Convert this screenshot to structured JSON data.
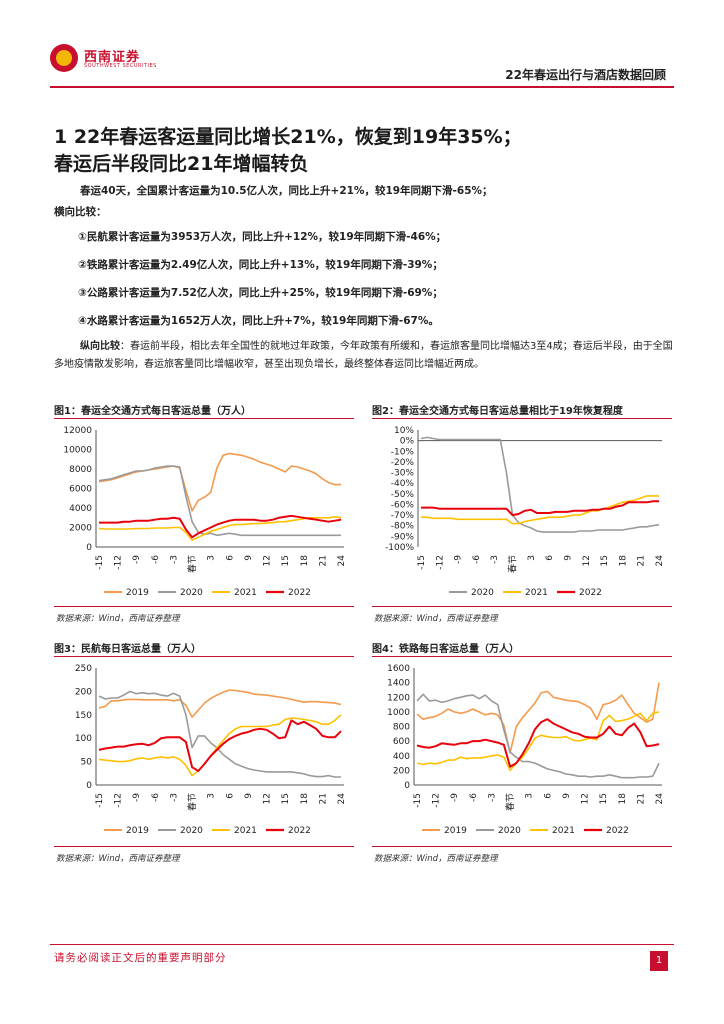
{
  "header": {
    "logo_cn": "西南证券",
    "logo_en": "SOUTHWEST SECURITIES",
    "title": "22年春运出行与酒店数据回顾"
  },
  "heading": {
    "line1": "1 22年春运客运量同比增长21%，恢复到19年35%；",
    "line2": "春运后半段同比21年增幅转负"
  },
  "summary": {
    "p1": "春运40天，全国累计客运量为10.5亿人次，同比上升+21%，较19年同期下滑-65%；",
    "p2": "横向比较：",
    "items": [
      "①民航累计客运量为3953万人次，同比上升+12%，较19年同期下滑-46%；",
      "②铁路累计客运量为2.49亿人次，同比上升+13%，较19年同期下滑-39%；",
      "③公路累计客运量为7.52亿人次，同比上升+25%，较19年同期下滑-69%；",
      "④水路累计客运量为1652万人次，同比上升+7%，较19年同期下滑-67%。"
    ],
    "vertical_label": "纵向比较",
    "vertical_text": "：春运前半段，相比去年全国性的就地过年政策，今年政策有所缓和，春运旅客量同比增幅达3至4成；春运后半段，由于全国多地疫情散发影响，春运旅客量同比增幅收窄，甚至出现负增长，最终整体春运同比增幅近两成。"
  },
  "figures": [
    {
      "title": "图1：春运全交通方式每日客运总量（万人）",
      "source": "数据来源：Wind，西南证券整理"
    },
    {
      "title": "图2：春运全交通方式每日客运总量相比于19年恢复程度",
      "source": "数据来源：Wind，西南证券整理"
    },
    {
      "title": "图3：民航每日客运总量（万人）",
      "source": "数据来源：Wind，西南证券整理"
    },
    {
      "title": "图4：铁路每日客运总量（万人）",
      "source": "数据来源：Wind，西南证券整理"
    }
  ],
  "footer": {
    "disclaimer": "请务必阅读正文后的重要声明部分",
    "page": "1"
  },
  "colors": {
    "s2019": "#f39a4c",
    "s2020": "#9a9a9a",
    "s2021": "#ffc000",
    "s2022": "#e8000b",
    "accent": "#c8102e"
  },
  "chart_data": [
    {
      "type": "line",
      "x_ticks": [
        "-15",
        "-12",
        "-9",
        "-6",
        "-3",
        "春节",
        "3",
        "6",
        "9",
        "12",
        "15",
        "18",
        "21",
        "24"
      ],
      "x": [
        -15,
        -14,
        -13,
        -12,
        -11,
        -10,
        -9,
        -8,
        -7,
        -6,
        -5,
        -4,
        -3,
        -2,
        -1,
        0,
        1,
        2,
        3,
        4,
        5,
        6,
        7,
        8,
        9,
        10,
        11,
        12,
        13,
        14,
        15,
        16,
        17,
        18,
        19,
        20,
        21,
        22,
        23,
        24
      ],
      "ylim": [
        0,
        12000
      ],
      "yticks": [
        "0",
        "2000",
        "4000",
        "6000",
        "8000",
        "10000",
        "12000"
      ],
      "legend": [
        "2019",
        "2020",
        "2021",
        "2022"
      ],
      "series": [
        {
          "name": "2019",
          "values": [
            6700,
            6800,
            6900,
            7100,
            7300,
            7500,
            7700,
            7800,
            7900,
            8000,
            8100,
            8200,
            8300,
            8100,
            5800,
            3700,
            4800,
            5100,
            5600,
            8100,
            9400,
            9600,
            9500,
            9400,
            9200,
            9000,
            8700,
            8500,
            8300,
            8000,
            7700,
            8300,
            8200,
            8000,
            7800,
            7500,
            7000,
            6600,
            6400,
            6400
          ]
        },
        {
          "name": "2020",
          "values": [
            6800,
            6900,
            7000,
            7200,
            7400,
            7600,
            7800,
            7800,
            7900,
            8100,
            8200,
            8300,
            8300,
            8200,
            5200,
            2600,
            1500,
            1300,
            1400,
            1200,
            1300,
            1400,
            1300,
            1200,
            1200,
            1200,
            1200,
            1200,
            1200,
            1200,
            1200,
            1200,
            1200,
            1200,
            1200,
            1200,
            1200,
            1200,
            1200,
            1200
          ]
        },
        {
          "name": "2021",
          "values": [
            1900,
            1850,
            1850,
            1850,
            1850,
            1850,
            1900,
            1900,
            1900,
            1950,
            1950,
            1950,
            2000,
            2000,
            1500,
            700,
            1000,
            1300,
            1600,
            1800,
            2000,
            2200,
            2300,
            2300,
            2350,
            2400,
            2400,
            2450,
            2500,
            2600,
            2600,
            2700,
            2800,
            2900,
            3000,
            3000,
            3000,
            3000,
            3100,
            3000
          ]
        },
        {
          "name": "2022",
          "values": [
            2500,
            2500,
            2500,
            2500,
            2600,
            2600,
            2700,
            2700,
            2700,
            2800,
            2900,
            2900,
            3000,
            2900,
            1800,
            1000,
            1400,
            1700,
            2000,
            2300,
            2500,
            2700,
            2800,
            2800,
            2800,
            2800,
            2700,
            2700,
            2800,
            3000,
            3100,
            3200,
            3100,
            3000,
            2900,
            2800,
            2700,
            2600,
            2700,
            2800
          ]
        }
      ]
    },
    {
      "type": "line",
      "x_ticks": [
        "-15",
        "-12",
        "-9",
        "-6",
        "-3",
        "春节",
        "3",
        "6",
        "9",
        "12",
        "15",
        "18",
        "21",
        "24"
      ],
      "x": [
        -15,
        -14,
        -13,
        -12,
        -11,
        -10,
        -9,
        -8,
        -7,
        -6,
        -5,
        -4,
        -3,
        -2,
        -1,
        0,
        1,
        2,
        3,
        4,
        5,
        6,
        7,
        8,
        9,
        10,
        11,
        12,
        13,
        14,
        15,
        16,
        17,
        18,
        19,
        20,
        21,
        22,
        23,
        24
      ],
      "ylim": [
        -100,
        10
      ],
      "yticks": [
        "-100%",
        "-90%",
        "-80%",
        "-70%",
        "-60%",
        "-50%",
        "-40%",
        "-30%",
        "-20%",
        "-10%",
        "0%",
        "10%"
      ],
      "legend": [
        "2020",
        "2021",
        "2022"
      ],
      "series": [
        {
          "name": "2020",
          "values": [
            2,
            3,
            2,
            1,
            1,
            1,
            1,
            1,
            1,
            1,
            1,
            1,
            1,
            1,
            -30,
            -70,
            -77,
            -80,
            -82,
            -85,
            -86,
            -86,
            -86,
            -86,
            -86,
            -86,
            -85,
            -85,
            -85,
            -84,
            -84,
            -84,
            -84,
            -84,
            -83,
            -82,
            -81,
            -81,
            -80,
            -79
          ]
        },
        {
          "name": "2021",
          "values": [
            -72,
            -72,
            -73,
            -73,
            -73,
            -73,
            -74,
            -74,
            -74,
            -74,
            -74,
            -74,
            -74,
            -74,
            -74,
            -78,
            -78,
            -76,
            -75,
            -74,
            -73,
            -72,
            -72,
            -72,
            -71,
            -70,
            -70,
            -68,
            -66,
            -66,
            -64,
            -62,
            -60,
            -58,
            -57,
            -56,
            -54,
            -52,
            -52,
            -52
          ]
        },
        {
          "name": "2022",
          "values": [
            -63,
            -63,
            -63,
            -64,
            -64,
            -64,
            -64,
            -64,
            -64,
            -64,
            -64,
            -64,
            -64,
            -64,
            -64,
            -70,
            -69,
            -66,
            -65,
            -68,
            -68,
            -68,
            -67,
            -67,
            -67,
            -66,
            -66,
            -66,
            -65,
            -65,
            -64,
            -64,
            -62,
            -61,
            -58,
            -58,
            -58,
            -58,
            -57,
            -57
          ]
        }
      ]
    },
    {
      "type": "line",
      "x_ticks": [
        "-15",
        "-12",
        "-9",
        "-6",
        "-3",
        "春节",
        "3",
        "6",
        "9",
        "12",
        "15",
        "18",
        "21",
        "24"
      ],
      "x": [
        -15,
        -14,
        -13,
        -12,
        -11,
        -10,
        -9,
        -8,
        -7,
        -6,
        -5,
        -4,
        -3,
        -2,
        -1,
        0,
        1,
        2,
        3,
        4,
        5,
        6,
        7,
        8,
        9,
        10,
        11,
        12,
        13,
        14,
        15,
        16,
        17,
        18,
        19,
        20,
        21,
        22,
        23,
        24
      ],
      "ylim": [
        0,
        250
      ],
      "yticks": [
        "0",
        "50",
        "100",
        "150",
        "200",
        "250"
      ],
      "legend": [
        "2019",
        "2020",
        "2021",
        "2022"
      ],
      "series": [
        {
          "name": "2019",
          "values": [
            165,
            168,
            180,
            180,
            182,
            183,
            183,
            182,
            182,
            182,
            182,
            182,
            180,
            182,
            170,
            145,
            160,
            175,
            185,
            192,
            198,
            203,
            202,
            200,
            198,
            194,
            193,
            192,
            190,
            188,
            186,
            183,
            180,
            177,
            178,
            178,
            177,
            176,
            175,
            172
          ]
        },
        {
          "name": "2020",
          "values": [
            190,
            184,
            186,
            186,
            192,
            200,
            195,
            197,
            195,
            196,
            192,
            190,
            196,
            190,
            150,
            80,
            105,
            105,
            90,
            80,
            65,
            55,
            45,
            40,
            35,
            32,
            30,
            28,
            28,
            28,
            28,
            28,
            26,
            24,
            20,
            18,
            18,
            20,
            17,
            17
          ]
        },
        {
          "name": "2021",
          "values": [
            55,
            53,
            52,
            50,
            50,
            52,
            56,
            58,
            55,
            58,
            60,
            58,
            60,
            55,
            42,
            20,
            30,
            45,
            62,
            80,
            95,
            110,
            120,
            125,
            125,
            125,
            125,
            125,
            128,
            130,
            140,
            143,
            142,
            140,
            138,
            135,
            130,
            130,
            138,
            150
          ]
        },
        {
          "name": "2022",
          "values": [
            75,
            78,
            80,
            82,
            82,
            85,
            87,
            88,
            85,
            90,
            100,
            102,
            102,
            102,
            92,
            38,
            30,
            45,
            62,
            75,
            88,
            98,
            105,
            110,
            113,
            118,
            120,
            118,
            110,
            100,
            102,
            138,
            130,
            135,
            128,
            120,
            105,
            102,
            102,
            115
          ]
        }
      ]
    },
    {
      "type": "line",
      "x_ticks": [
        "-15",
        "-12",
        "-9",
        "-6",
        "-3",
        "春节",
        "3",
        "6",
        "9",
        "12",
        "15",
        "18",
        "21",
        "24"
      ],
      "x": [
        -15,
        -14,
        -13,
        -12,
        -11,
        -10,
        -9,
        -8,
        -7,
        -6,
        -5,
        -4,
        -3,
        -2,
        -1,
        0,
        1,
        2,
        3,
        4,
        5,
        6,
        7,
        8,
        9,
        10,
        11,
        12,
        13,
        14,
        15,
        16,
        17,
        18,
        19,
        20,
        21,
        22,
        23,
        24
      ],
      "ylim": [
        0,
        1600
      ],
      "yticks": [
        "0",
        "200",
        "400",
        "600",
        "800",
        "1000",
        "1200",
        "1400",
        "1600"
      ],
      "legend": [
        "2019",
        "2020",
        "2021",
        "2022"
      ],
      "series": [
        {
          "name": "2019",
          "values": [
            970,
            900,
            920,
            940,
            980,
            1040,
            1000,
            980,
            1000,
            1040,
            1000,
            960,
            980,
            960,
            820,
            440,
            800,
            920,
            1020,
            1120,
            1260,
            1280,
            1200,
            1180,
            1160,
            1150,
            1140,
            1100,
            1050,
            900,
            1100,
            1120,
            1160,
            1230,
            1100,
            980,
            920,
            860,
            900,
            1400
          ]
        },
        {
          "name": "2020",
          "values": [
            1150,
            1240,
            1150,
            1160,
            1130,
            1150,
            1180,
            1200,
            1220,
            1230,
            1180,
            1230,
            1150,
            1100,
            750,
            450,
            380,
            320,
            320,
            300,
            260,
            220,
            200,
            180,
            150,
            140,
            120,
            120,
            110,
            120,
            120,
            140,
            120,
            100,
            100,
            100,
            110,
            110,
            120,
            300
          ]
        },
        {
          "name": "2021",
          "values": [
            300,
            280,
            300,
            290,
            310,
            340,
            340,
            380,
            360,
            370,
            370,
            380,
            400,
            410,
            380,
            200,
            300,
            380,
            500,
            640,
            680,
            660,
            650,
            650,
            660,
            620,
            600,
            620,
            640,
            620,
            880,
            950,
            870,
            880,
            900,
            940,
            980,
            880,
            980,
            1000
          ]
        },
        {
          "name": "2022",
          "values": [
            540,
            520,
            510,
            530,
            570,
            560,
            550,
            570,
            570,
            600,
            600,
            620,
            600,
            580,
            550,
            250,
            300,
            420,
            570,
            760,
            860,
            900,
            840,
            800,
            760,
            720,
            700,
            660,
            650,
            650,
            700,
            800,
            700,
            680,
            780,
            840,
            720,
            530,
            540,
            560
          ]
        }
      ]
    }
  ]
}
